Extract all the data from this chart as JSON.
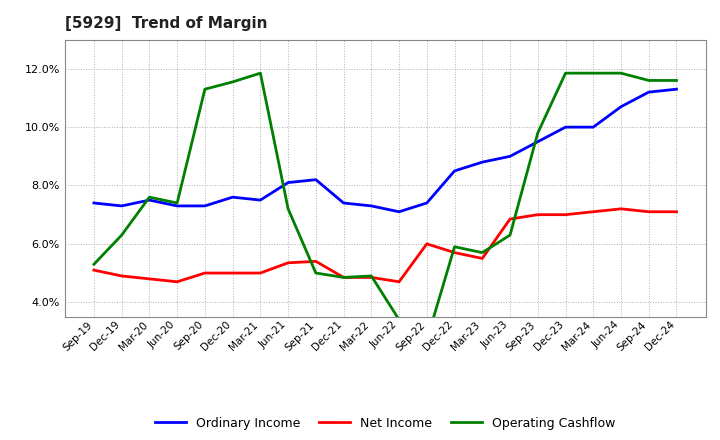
{
  "title": "[5929]  Trend of Margin",
  "x_labels": [
    "Sep-19",
    "Dec-19",
    "Mar-20",
    "Jun-20",
    "Sep-20",
    "Dec-20",
    "Mar-21",
    "Jun-21",
    "Sep-21",
    "Dec-21",
    "Mar-22",
    "Jun-22",
    "Sep-22",
    "Dec-22",
    "Mar-23",
    "Jun-23",
    "Sep-23",
    "Dec-23",
    "Mar-24",
    "Jun-24",
    "Sep-24",
    "Dec-24"
  ],
  "ordinary_income": [
    7.4,
    7.3,
    7.5,
    7.3,
    7.3,
    7.6,
    7.5,
    8.1,
    8.2,
    7.4,
    7.3,
    7.1,
    7.4,
    8.5,
    8.8,
    9.0,
    9.5,
    10.0,
    10.0,
    10.7,
    11.2,
    11.3
  ],
  "net_income": [
    5.1,
    4.9,
    4.8,
    4.7,
    5.0,
    5.0,
    5.0,
    5.35,
    5.4,
    4.85,
    4.85,
    4.7,
    6.0,
    5.7,
    5.5,
    6.85,
    7.0,
    7.0,
    7.1,
    7.2,
    7.1,
    7.1
  ],
  "operating_cashflow": [
    5.3,
    6.3,
    7.6,
    7.4,
    11.3,
    11.55,
    11.85,
    7.2,
    5.0,
    4.85,
    4.9,
    3.4,
    2.7,
    5.9,
    5.7,
    6.3,
    9.8,
    11.85,
    11.85,
    11.85,
    11.6,
    11.6
  ],
  "ylim": [
    3.5,
    13.0
  ],
  "yticks": [
    4.0,
    6.0,
    8.0,
    10.0,
    12.0
  ],
  "line_colors": {
    "ordinary_income": "#0000ff",
    "net_income": "#ff0000",
    "operating_cashflow": "#008000"
  },
  "legend_labels": [
    "Ordinary Income",
    "Net Income",
    "Operating Cashflow"
  ],
  "background_color": "#ffffff",
  "grid_color": "#b0b0b0"
}
